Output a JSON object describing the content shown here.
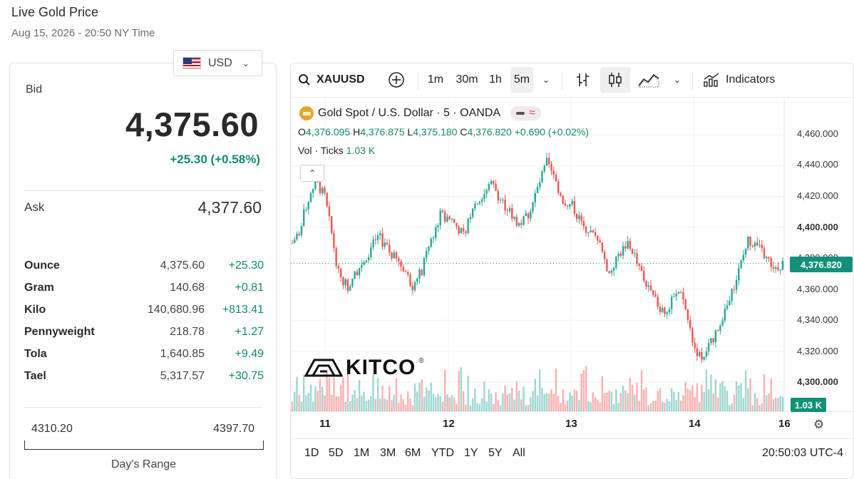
{
  "header": {
    "title": "Live Gold Price",
    "subtitle": "Aug 15, 2026 - 20:50 NY Time"
  },
  "currency": {
    "selected": "USD",
    "icon": "us-flag-icon"
  },
  "quote": {
    "bid_label": "Bid",
    "bid_value": "4,375.60",
    "bid_change": "+25.30 (+0.58%)",
    "ask_label": "Ask",
    "ask_value": "4,377.60"
  },
  "units": [
    {
      "name": "Ounce",
      "price": "4,375.60",
      "change": "+25.30"
    },
    {
      "name": "Gram",
      "price": "140.68",
      "change": "+0.81"
    },
    {
      "name": "Kilo",
      "price": "140,680.96",
      "change": "+813.41"
    },
    {
      "name": "Pennyweight",
      "price": "218.78",
      "change": "+1.27"
    },
    {
      "name": "Tola",
      "price": "1,640.85",
      "change": "+9.49"
    },
    {
      "name": "Tael",
      "price": "5,317.57",
      "change": "+30.75"
    }
  ],
  "day_range": {
    "low": "4310.20",
    "high": "4397.70",
    "label": "Day's Range",
    "low_value": 4310.2,
    "high_value": 4397.7
  },
  "toolbar": {
    "symbol": "XAUUSD",
    "intervals": [
      "1m",
      "30m",
      "1h",
      "5m"
    ],
    "selected_interval": "5m",
    "indicators_label": "Indicators"
  },
  "legend": {
    "instrument": "Gold Spot / U.S. Dollar · 5 · OANDA",
    "o_label": "O",
    "o_value": "4,376.095",
    "h_label": "H",
    "h_value": "4,376.875",
    "l_label": "L",
    "l_value": "4,375.180",
    "c_label": "C",
    "c_value": "4,376.820",
    "change": "+0.690 (+0.02%)",
    "vol_label": "Vol · Ticks",
    "vol_value": "1.03 K"
  },
  "watermark": {
    "text": "KITCO",
    "reg": "®"
  },
  "colors": {
    "up": "#26a69a",
    "down": "#ef5350",
    "accent": "#12907a"
  },
  "chart_data": {
    "type": "candlestick",
    "y_ticks": [
      "4,460.000",
      "4,440.000",
      "4,420.000",
      "4,400.000",
      "4,380.000",
      "4,360.000",
      "4,340.000",
      "4,320.000",
      "4,300.000"
    ],
    "ylim": [
      4300,
      4460
    ],
    "x_ticks": [
      "11",
      "12",
      "13",
      "14",
      "16"
    ],
    "last_price": "4,376.820",
    "last_volume": "1.03 K",
    "close_path": [
      [
        0,
        4390
      ],
      [
        3,
        4398
      ],
      [
        6,
        4414
      ],
      [
        10,
        4430
      ],
      [
        14,
        4420
      ],
      [
        17,
        4396
      ],
      [
        20,
        4370
      ],
      [
        24,
        4362
      ],
      [
        28,
        4372
      ],
      [
        33,
        4384
      ],
      [
        37,
        4395
      ],
      [
        42,
        4384
      ],
      [
        48,
        4374
      ],
      [
        52,
        4362
      ],
      [
        56,
        4372
      ],
      [
        60,
        4392
      ],
      [
        64,
        4408
      ],
      [
        69,
        4405
      ],
      [
        74,
        4395
      ],
      [
        78,
        4414
      ],
      [
        82,
        4419
      ],
      [
        86,
        4430
      ],
      [
        90,
        4418
      ],
      [
        94,
        4410
      ],
      [
        98,
        4402
      ],
      [
        102,
        4408
      ],
      [
        106,
        4425
      ],
      [
        110,
        4442
      ],
      [
        113,
        4432
      ],
      [
        117,
        4418
      ],
      [
        121,
        4414
      ],
      [
        125,
        4403
      ],
      [
        129,
        4397
      ],
      [
        133,
        4388
      ],
      [
        137,
        4370
      ],
      [
        141,
        4382
      ],
      [
        145,
        4390
      ],
      [
        149,
        4379
      ],
      [
        153,
        4362
      ],
      [
        157,
        4352
      ],
      [
        161,
        4345
      ],
      [
        165,
        4354
      ],
      [
        168,
        4360
      ],
      [
        171,
        4340
      ],
      [
        174,
        4322
      ],
      [
        177,
        4315
      ],
      [
        181,
        4325
      ],
      [
        185,
        4340
      ],
      [
        189,
        4352
      ],
      [
        193,
        4372
      ],
      [
        197,
        4392
      ],
      [
        201,
        4388
      ],
      [
        205,
        4380
      ],
      [
        209,
        4374
      ],
      [
        212,
        4377
      ]
    ],
    "volume_scale": "relative"
  },
  "bottom": {
    "ranges": [
      "1D",
      "5D",
      "1M",
      "3M",
      "6M",
      "YTD",
      "1Y",
      "5Y",
      "All"
    ],
    "clock": "20:50:03 UTC-4"
  }
}
